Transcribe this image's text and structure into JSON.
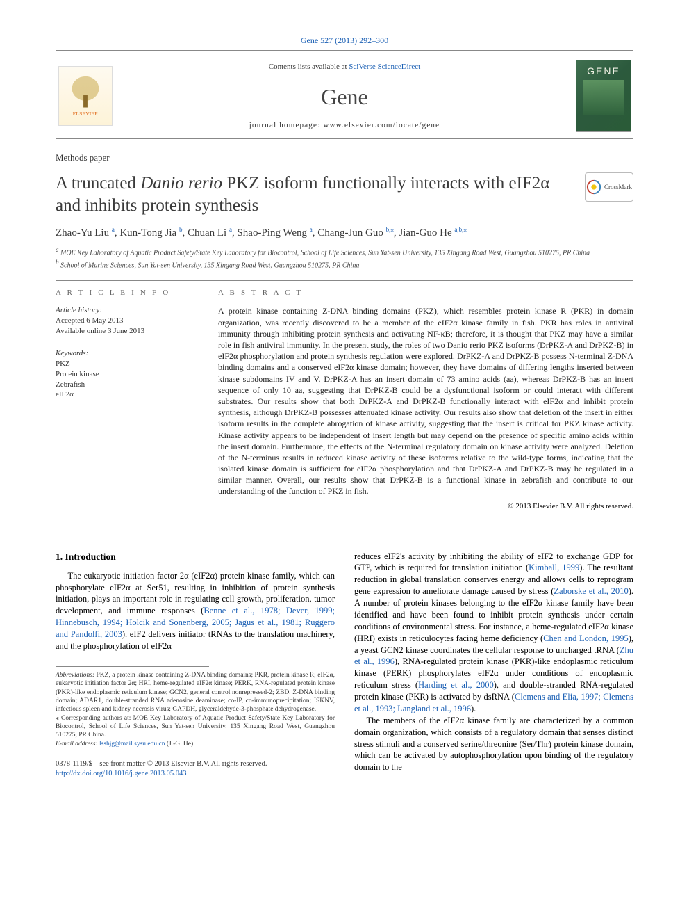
{
  "running_header": {
    "journal": "Gene",
    "volume_issue": "527 (2013) 292–300",
    "link_text": "Gene 527 (2013) 292–300"
  },
  "header": {
    "contents_prefix": "Contents lists available at ",
    "contents_link": "SciVerse ScienceDirect",
    "journal_name": "Gene",
    "homepage_label": "journal homepage: ",
    "homepage_url": "www.elsevier.com/locate/gene",
    "elsevier_wordmark": "ELSEVIER",
    "cover_title": "GENE"
  },
  "article": {
    "type": "Methods paper",
    "title_pre": "A truncated ",
    "title_italic": "Danio rerio",
    "title_post": " PKZ isoform functionally interacts with eIF2α and inhibits protein synthesis",
    "crossmark_label": "CrossMark",
    "authors_text": "Zhao-Yu Liu",
    "authors": [
      {
        "name": "Zhao-Yu Liu",
        "aff": "a"
      },
      {
        "name": "Kun-Tong Jia",
        "aff": "b"
      },
      {
        "name": "Chuan Li",
        "aff": "a"
      },
      {
        "name": "Shao-Ping Weng",
        "aff": "a"
      },
      {
        "name": "Chang-Jun Guo",
        "aff": "b,",
        "corr": "⁎"
      },
      {
        "name": "Jian-Guo He",
        "aff": "a,b,",
        "corr": "⁎"
      }
    ],
    "affiliations": [
      {
        "key": "a",
        "text": "MOE Key Laboratory of Aquatic Product Safety/State Key Laboratory for Biocontrol, School of Life Sciences, Sun Yat-sen University, 135 Xingang Road West, Guangzhou 510275, PR China"
      },
      {
        "key": "b",
        "text": "School of Marine Sciences, Sun Yat-sen University, 135 Xingang Road West, Guangzhou 510275, PR China"
      }
    ]
  },
  "meta": {
    "article_info_heading": "A R T I C L E    I N F O",
    "history_label": "Article history:",
    "accepted": "Accepted 6 May 2013",
    "online": "Available online 3 June 2013",
    "keywords_label": "Keywords:",
    "keywords": [
      "PKZ",
      "Protein kinase",
      "Zebrafish",
      "eIF2α"
    ]
  },
  "abstract": {
    "heading": "A B S T R A C T",
    "body": "A protein kinase containing Z-DNA binding domains (PKZ), which resembles protein kinase R (PKR) in domain organization, was recently discovered to be a member of the eIF2α kinase family in fish. PKR has roles in antiviral immunity through inhibiting protein synthesis and activating NF-κB; therefore, it is thought that PKZ may have a similar role in fish antiviral immunity. In the present study, the roles of two Danio rerio PKZ isoforms (DrPKZ-A and DrPKZ-B) in eIF2α phosphorylation and protein synthesis regulation were explored. DrPKZ-A and DrPKZ-B possess N-terminal Z-DNA binding domains and a conserved eIF2α kinase domain; however, they have domains of differing lengths inserted between kinase subdomains IV and V. DrPKZ-A has an insert domain of 73 amino acids (aa), whereas DrPKZ-B has an insert sequence of only 10 aa, suggesting that DrPKZ-B could be a dysfunctional isoform or could interact with different substrates. Our results show that both DrPKZ-A and DrPKZ-B functionally interact with eIF2α and inhibit protein synthesis, although DrPKZ-B possesses attenuated kinase activity. Our results also show that deletion of the insert in either isoform results in the complete abrogation of kinase activity, suggesting that the insert is critical for PKZ kinase activity. Kinase activity appears to be independent of insert length but may depend on the presence of specific amino acids within the insert domain. Furthermore, the effects of the N-terminal regulatory domain on kinase activity were analyzed. Deletion of the N-terminus results in reduced kinase activity of these isoforms relative to the wild-type forms, indicating that the isolated kinase domain is sufficient for eIF2α phosphorylation and that DrPKZ-A and DrPKZ-B may be regulated in a similar manner. Overall, our results show that DrPKZ-B is a functional kinase in zebrafish and contribute to our understanding of the function of PKZ in fish.",
    "copyright": "© 2013 Elsevier B.V. All rights reserved."
  },
  "body": {
    "intro_heading": "1. Introduction",
    "left_p1_pre": "The eukaryotic initiation factor 2α (eIF2α) protein kinase family, which can phosphorylate eIF2α at Ser51, resulting in inhibition of protein synthesis initiation, plays an important role in regulating cell growth, proliferation, tumor development, and immune responses (",
    "left_p1_link": "Benne et al., 1978; Dever, 1999; Hinnebusch, 1994; Holcik and Sonenberg, 2005; Jagus et al., 1981; Ruggero and Pandolfi, 2003",
    "left_p1_post": "). eIF2 delivers initiator tRNAs to the translation machinery, and the phosphorylation of eIF2α",
    "right_p1_a": "reduces eIF2's activity by inhibiting the ability of eIF2 to exchange GDP for GTP, which is required for translation initiation (",
    "right_p1_link1": "Kimball, 1999",
    "right_p1_b": "). The resultant reduction in global translation conserves energy and allows cells to reprogram gene expression to ameliorate damage caused by stress (",
    "right_p1_link2": "Zaborske et al., 2010",
    "right_p1_c": "). A number of protein kinases belonging to the eIF2α kinase family have been identified and have been found to inhibit protein synthesis under certain conditions of environmental stress. For instance, a heme-regulated eIF2α kinase (HRI) exists in reticulocytes facing heme deficiency (",
    "right_p1_link3": "Chen and London, 1995",
    "right_p1_d": "), a yeast GCN2 kinase coordinates the cellular response to uncharged tRNA (",
    "right_p1_link4": "Zhu et al., 1996",
    "right_p1_e": "), RNA-regulated protein kinase (PKR)-like endoplasmic reticulum kinase (PERK) phosphorylates eIF2α under conditions of endoplasmic reticulum stress (",
    "right_p1_link5": "Harding et al., 2000",
    "right_p1_f": "), and double-stranded RNA-regulated protein kinase (PKR) is activated by dsRNA (",
    "right_p1_link6": "Clemens and Elia, 1997; Clemens et al., 1993; Langland et al., 1996",
    "right_p1_g": ").",
    "right_p2": "The members of the eIF2α kinase family are characterized by a common domain organization, which consists of a regulatory domain that senses distinct stress stimuli and a conserved serine/threonine (Ser/Thr) protein kinase domain, which can be activated by autophosphorylation upon binding of the regulatory domain to the"
  },
  "footnotes": {
    "abbrev_label": "Abbreviations:",
    "abbrev_text": " PKZ, a protein kinase containing Z-DNA binding domains; PKR, protein kinase R; eIF2α, eukaryotic initiation factor 2α; HRI, heme-regulated eIF2α kinase; PERK, RNA-regulated protein kinase (PKR)-like endoplasmic reticulum kinase; GCN2, general control nonrepressed-2; ZBD, Z-DNA binding domain; ADAR1, double-stranded RNA adenosine deaminase; co-IP, co-immunoprecipitation; ISKNV, infectious spleen and kidney necrosis virus; GAPDH, glyceraldehyde-3-phosphate dehydrogenase.",
    "corr_symbol": "⁎",
    "corr_text": " Corresponding authors at: MOE Key Laboratory of Aquatic Product Safety/State Key Laboratory for Biocontrol, School of Life Sciences, Sun Yat-sen University, 135 Xingang Road West, Guangzhou 510275, PR China.",
    "email_label": "E-mail address: ",
    "email": "lsshjg@mail.sysu.edu.cn",
    "email_post": " (J.-G. He)."
  },
  "bottom": {
    "issn_line": "0378-1119/$ – see front matter © 2013 Elsevier B.V. All rights reserved.",
    "doi": "http://dx.doi.org/10.1016/j.gene.2013.05.043"
  }
}
